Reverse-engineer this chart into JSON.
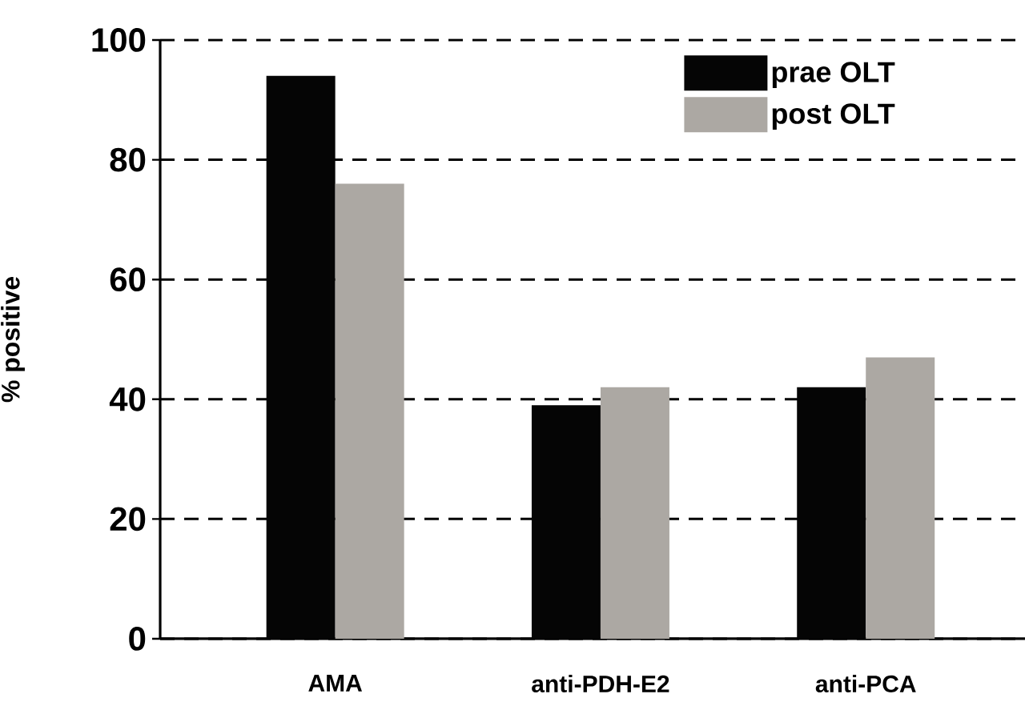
{
  "chart_data": {
    "type": "bar",
    "ylabel": "% positive",
    "categories": [
      "AMA",
      "anti-PDH-E2",
      "anti-PCA"
    ],
    "series": [
      {
        "name": "prae OLT",
        "color": "#050505",
        "values": [
          94,
          39,
          42
        ]
      },
      {
        "name": "post OLT",
        "color": "#aca8a3",
        "values": [
          76,
          42,
          47
        ]
      }
    ],
    "ylim": [
      0,
      100
    ],
    "yticks": [
      0,
      20,
      40,
      60,
      80,
      100
    ],
    "grid": "y",
    "legend": "top right"
  }
}
